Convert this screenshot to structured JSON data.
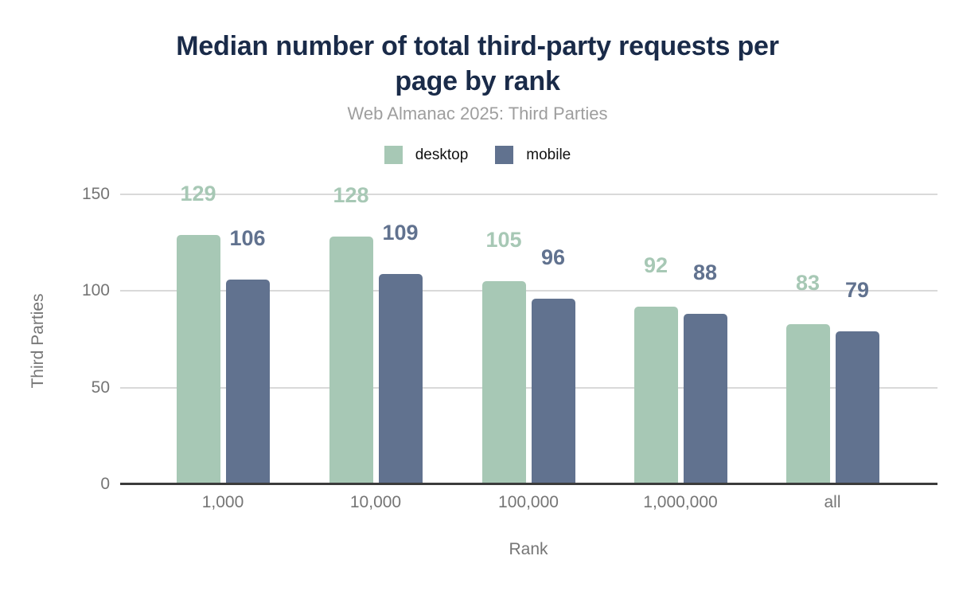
{
  "header": {
    "title_lines": [
      "Median number of total third-party requests per",
      "page by rank"
    ],
    "subtitle": "Web Almanac 2025: Third Parties"
  },
  "colors": {
    "title_text": "#1a2b49",
    "subtitle_text": "#9e9e9e",
    "axis_text": "#757575",
    "gridline": "#d9d9d9",
    "axis_line": "#3b3b3b",
    "desktop": "#a7c8b5",
    "mobile": "#61728f"
  },
  "chart_data": {
    "type": "bar",
    "title": "Median number of total third-party requests per page by rank",
    "subtitle": "Web Almanac 2025: Third Parties",
    "categories": [
      "1,000",
      "10,000",
      "100,000",
      "1,000,000",
      "all"
    ],
    "series": [
      {
        "name": "desktop",
        "color": "#a7c8b5",
        "values": [
          129,
          128,
          105,
          92,
          83
        ]
      },
      {
        "name": "mobile",
        "color": "#61728f",
        "values": [
          106,
          109,
          96,
          88,
          79
        ]
      }
    ],
    "xlabel": "Rank",
    "ylabel": "Third Parties",
    "yticks": [
      0,
      50,
      100,
      150
    ],
    "ylim": [
      0,
      155
    ],
    "grid": "horizontal",
    "legend_position": "top",
    "data_labels": true
  }
}
